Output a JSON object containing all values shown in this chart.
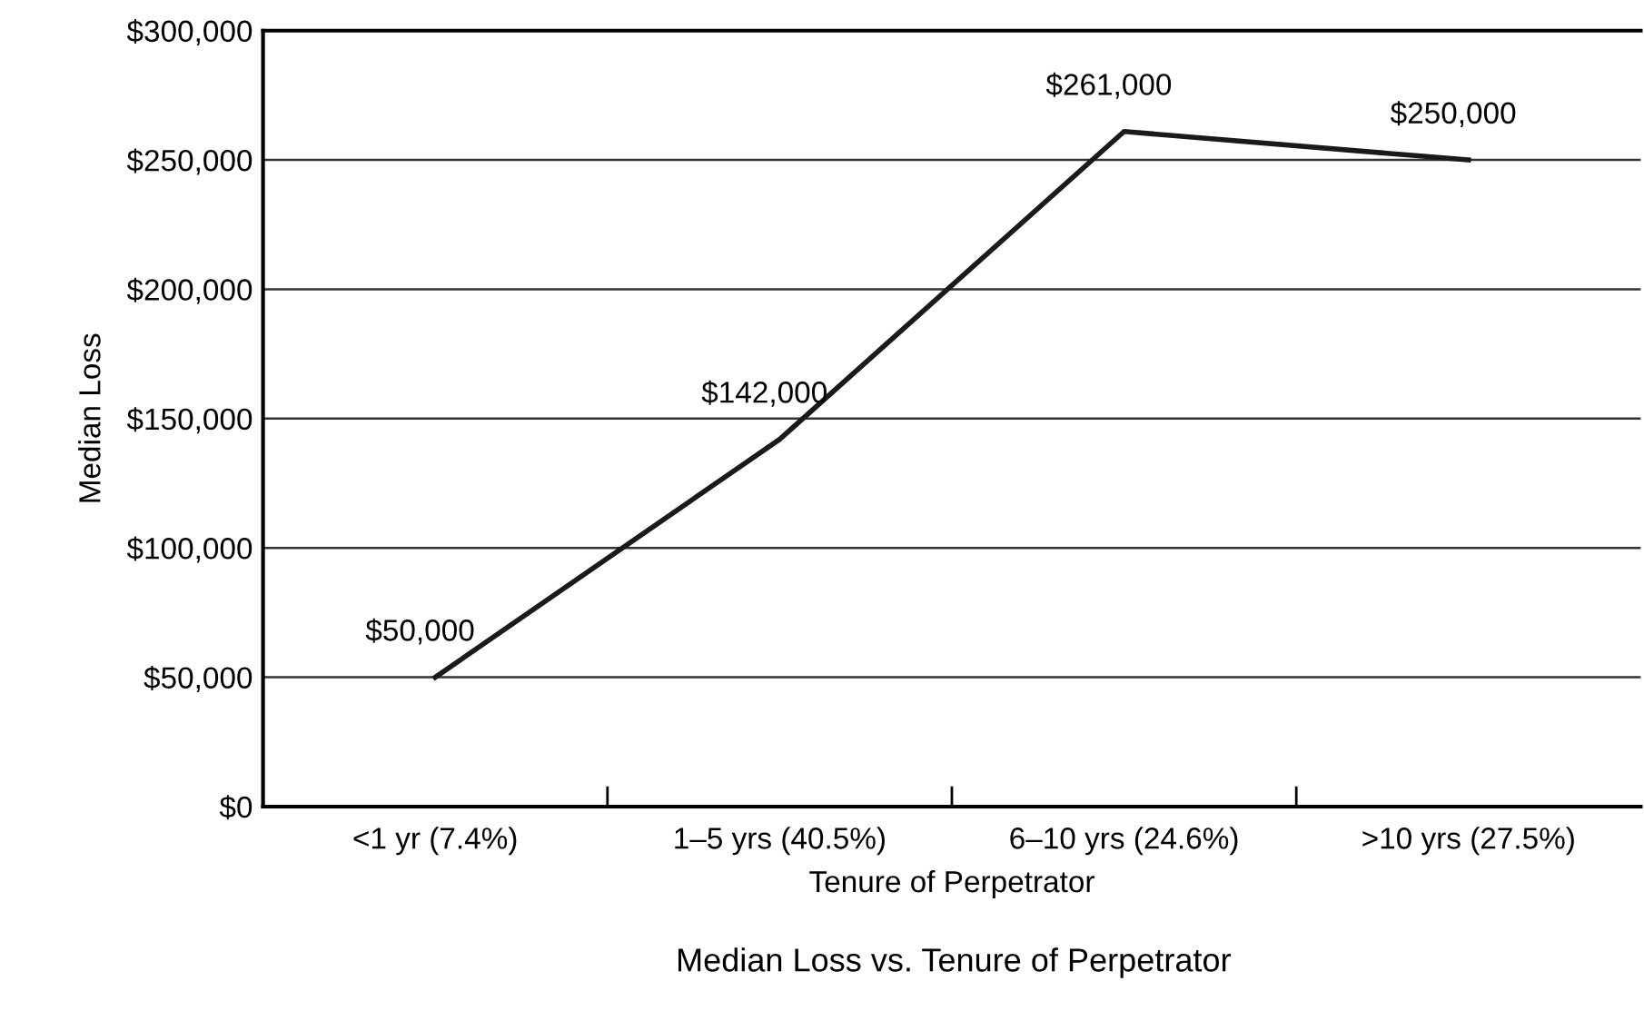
{
  "chart_data": {
    "type": "line",
    "title": "Median Loss vs. Tenure of Perpetrator",
    "xlabel": "Tenure of Perpetrator",
    "ylabel": "Median Loss",
    "categories": [
      "<1 yr (7.4%)",
      "1–5 yrs (40.5%)",
      "6–10 yrs (24.6%)",
      ">10 yrs (27.5%)"
    ],
    "series": [
      {
        "color": "#1a1a1a",
        "values": [
          50000,
          142000,
          261000,
          250000
        ],
        "value_labels": [
          "$50,000",
          "$142,000",
          "$261,000",
          "$250,000"
        ]
      }
    ],
    "ylim": [
      0,
      300000
    ],
    "yticks": [
      {
        "value": 0,
        "label": "$0"
      },
      {
        "value": 50000,
        "label": "$50,000"
      },
      {
        "value": 100000,
        "label": "$100,000"
      },
      {
        "value": 150000,
        "label": "$150,000"
      },
      {
        "value": 200000,
        "label": "$200,000"
      },
      {
        "value": 250000,
        "label": "$250,000"
      },
      {
        "value": 300000,
        "label": "$300,000"
      }
    ],
    "grid": "y",
    "marker": "none",
    "line_style": "solid"
  }
}
